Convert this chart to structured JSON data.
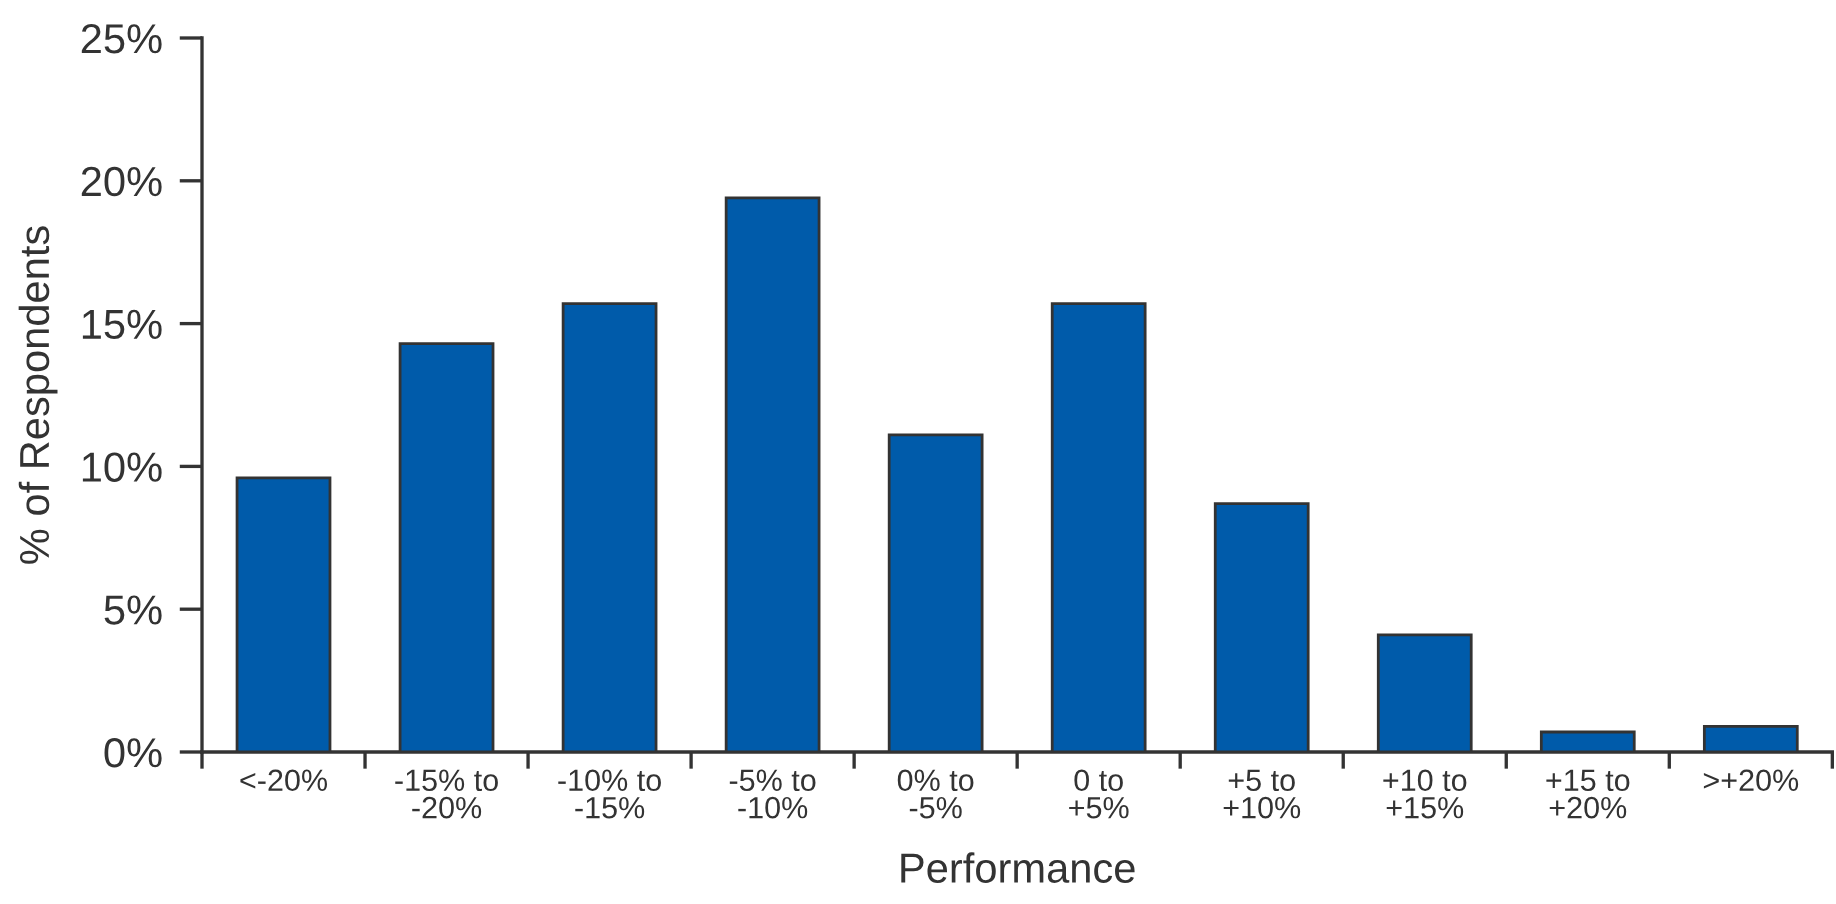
{
  "chart_data": {
    "type": "bar",
    "xlabel": "Performance",
    "ylabel": "% of Respondents",
    "categories": [
      "<-20%",
      "-15% to\n-20%",
      "-10% to\n-15%",
      "-5% to\n-10%",
      "0% to\n-5%",
      "0 to\n+5%",
      "+5 to\n+10%",
      "+10 to\n+15%",
      "+15 to\n+20%",
      ">+20%"
    ],
    "values": [
      9.6,
      14.3,
      15.7,
      19.4,
      11.1,
      15.7,
      8.7,
      4.1,
      0.7,
      0.9
    ],
    "color": "#005baa",
    "ylim": [
      0,
      25
    ],
    "yticks": [
      {
        "value": 0,
        "label": "0%"
      },
      {
        "value": 5,
        "label": "5%"
      },
      {
        "value": 10,
        "label": "10%"
      },
      {
        "value": 15,
        "label": "15%"
      },
      {
        "value": 20,
        "label": "20%"
      },
      {
        "value": 25,
        "label": "25%"
      }
    ],
    "grid": false,
    "legend": false
  }
}
